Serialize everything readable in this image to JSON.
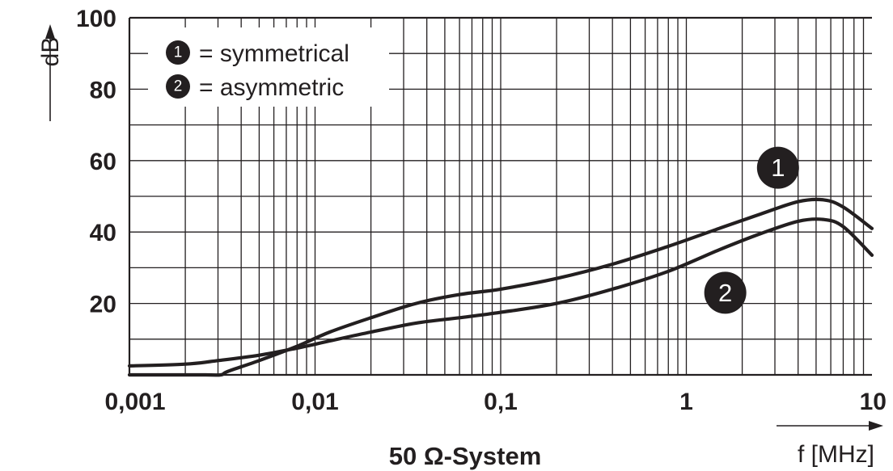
{
  "chart_data": {
    "type": "line",
    "subtitle": "50 Ω-System",
    "xlabel": "f [MHz]",
    "ylabel": "dB",
    "x_scale": "log",
    "xlim": [
      0.001,
      10
    ],
    "ylim": [
      0,
      100
    ],
    "x_ticks": [
      "0,001",
      "0,01",
      "0,1",
      "1",
      "10"
    ],
    "x_tick_values": [
      0.001,
      0.01,
      0.1,
      1,
      10
    ],
    "y_ticks": [
      "20",
      "40",
      "60",
      "80",
      "100"
    ],
    "y_tick_values": [
      20,
      40,
      60,
      80,
      100
    ],
    "grid": true,
    "legend": {
      "position": "top-left",
      "entries": [
        {
          "marker": "1",
          "text": "= symmetrical"
        },
        {
          "marker": "2",
          "text": "= asymmetric"
        }
      ]
    },
    "series": [
      {
        "marker": "1",
        "x": [
          0.001,
          0.0025,
          0.0031,
          0.0034,
          0.005,
          0.008,
          0.012,
          0.02,
          0.035,
          0.06,
          0.1,
          0.2,
          0.4,
          0.8,
          1.5,
          2.5,
          4.0,
          5.5,
          7.0,
          10.0
        ],
        "values": [
          0,
          0,
          0,
          1,
          4,
          8,
          12,
          16,
          20,
          22.5,
          24,
          27,
          31,
          36,
          41,
          45,
          48.5,
          49,
          47,
          41
        ]
      },
      {
        "marker": "2",
        "x": [
          0.001,
          0.002,
          0.003,
          0.005,
          0.008,
          0.012,
          0.02,
          0.035,
          0.06,
          0.1,
          0.2,
          0.4,
          0.8,
          1.5,
          2.5,
          4.0,
          5.5,
          7.0,
          10.0
        ],
        "values": [
          2.5,
          3,
          4,
          5.5,
          7.5,
          9.5,
          12,
          14.5,
          16,
          17.5,
          20,
          24,
          29,
          35,
          39.5,
          43,
          43.5,
          41.5,
          33.5
        ]
      }
    ],
    "annotations": [
      {
        "marker": "1",
        "x": 2.5,
        "y": 58
      },
      {
        "marker": "2",
        "x": 1.3,
        "y": 23
      }
    ]
  }
}
